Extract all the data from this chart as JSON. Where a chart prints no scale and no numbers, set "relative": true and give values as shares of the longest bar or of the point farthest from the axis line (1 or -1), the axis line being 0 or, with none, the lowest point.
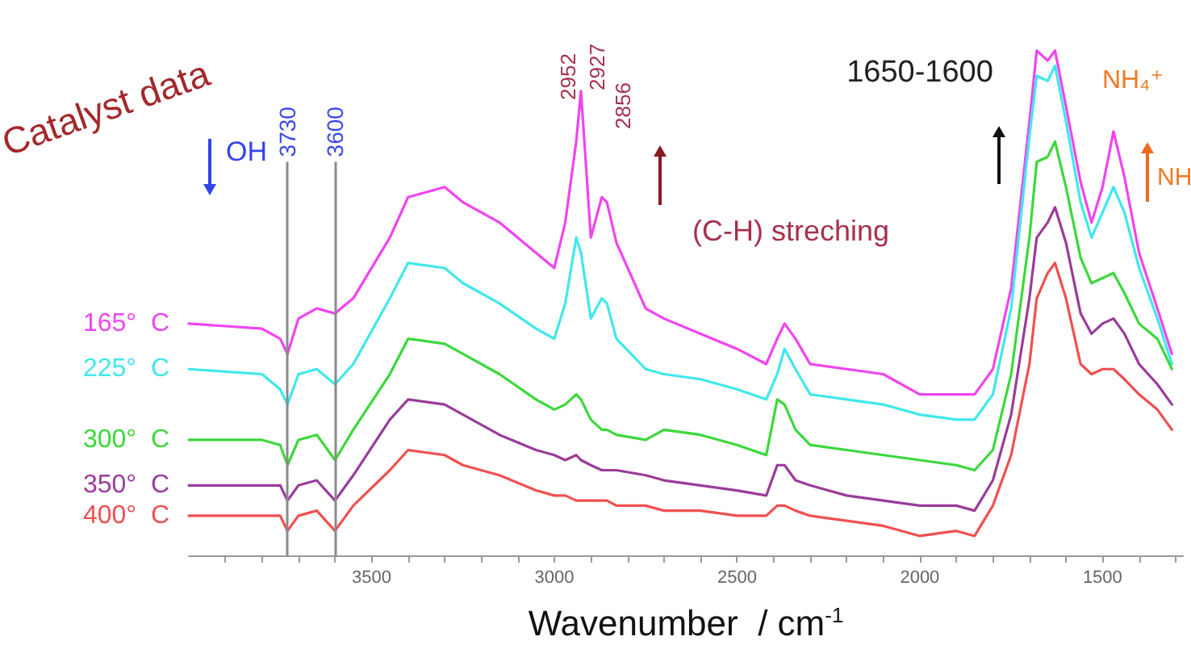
{
  "chart_data": {
    "type": "line",
    "title": "Catalyst data",
    "xlabel": "Wavenumber  / cm$^{-1}$",
    "relative": true,
    "marker": "none",
    "line_style": "solid",
    "xlim": [
      4000,
      1280
    ],
    "xticks": [
      {
        "value": 3900,
        "label": null
      },
      {
        "value": 3800,
        "label": null
      },
      {
        "value": 3700,
        "label": null
      },
      {
        "value": 3600,
        "label": null
      },
      3500,
      {
        "value": 3400,
        "label": null
      },
      {
        "value": 3300,
        "label": null
      },
      {
        "value": 3200,
        "label": null
      },
      {
        "value": 3100,
        "label": null
      },
      3000,
      {
        "value": 2900,
        "label": null
      },
      {
        "value": 2800,
        "label": null
      },
      {
        "value": 2700,
        "label": null
      },
      {
        "value": 2600,
        "label": null
      },
      2500,
      {
        "value": 2400,
        "label": null
      },
      {
        "value": 2300,
        "label": null
      },
      {
        "value": 2200,
        "label": null
      },
      {
        "value": 2100,
        "label": null
      },
      2000,
      {
        "value": 1900,
        "label": null
      },
      {
        "value": 1800,
        "label": null
      },
      {
        "value": 1700,
        "label": null
      },
      {
        "value": 1600,
        "label": null
      },
      1500,
      {
        "value": 1400,
        "label": null
      },
      {
        "value": 1300,
        "label": null
      }
    ],
    "x": [
      4000,
      3800,
      3750,
      3730,
      3700,
      3650,
      3600,
      3550,
      3450,
      3400,
      3300,
      3250,
      3150,
      3050,
      3000,
      2970,
      2940,
      2927,
      2900,
      2870,
      2856,
      2830,
      2750,
      2700,
      2600,
      2500,
      2420,
      2390,
      2370,
      2340,
      2300,
      2200,
      2100,
      2000,
      1900,
      1850,
      1800,
      1750,
      1700,
      1680,
      1650,
      1630,
      1600,
      1560,
      1530,
      1500,
      1470,
      1440,
      1400,
      1350,
      1310
    ],
    "series": [
      {
        "name": "165°  C",
        "color": "#f044f0",
        "values": [
          0.46,
          0.45,
          0.43,
          0.4,
          0.47,
          0.49,
          0.48,
          0.51,
          0.63,
          0.71,
          0.73,
          0.7,
          0.66,
          0.6,
          0.57,
          0.66,
          0.82,
          0.92,
          0.63,
          0.71,
          0.7,
          0.62,
          0.49,
          0.47,
          0.44,
          0.41,
          0.38,
          0.43,
          0.46,
          0.43,
          0.38,
          0.37,
          0.36,
          0.32,
          0.32,
          0.32,
          0.37,
          0.53,
          0.86,
          1.0,
          0.98,
          1.0,
          0.89,
          0.74,
          0.66,
          0.73,
          0.84,
          0.75,
          0.6,
          0.49,
          0.4
        ]
      },
      {
        "name": "225°  C",
        "color": "#40e8ec",
        "values": [
          0.37,
          0.36,
          0.33,
          0.3,
          0.36,
          0.37,
          0.34,
          0.38,
          0.51,
          0.58,
          0.57,
          0.54,
          0.5,
          0.45,
          0.43,
          0.5,
          0.63,
          0.6,
          0.47,
          0.51,
          0.5,
          0.43,
          0.37,
          0.36,
          0.35,
          0.33,
          0.31,
          0.36,
          0.41,
          0.37,
          0.32,
          0.31,
          0.3,
          0.28,
          0.27,
          0.27,
          0.32,
          0.49,
          0.83,
          0.95,
          0.94,
          0.97,
          0.86,
          0.7,
          0.63,
          0.68,
          0.73,
          0.68,
          0.57,
          0.47,
          0.38
        ]
      },
      {
        "name": "300°  C",
        "color": "#3cd83c",
        "values": [
          0.23,
          0.23,
          0.22,
          0.18,
          0.23,
          0.24,
          0.19,
          0.25,
          0.36,
          0.43,
          0.42,
          0.4,
          0.36,
          0.31,
          0.29,
          0.3,
          0.32,
          0.31,
          0.27,
          0.25,
          0.25,
          0.24,
          0.23,
          0.25,
          0.24,
          0.22,
          0.2,
          0.31,
          0.3,
          0.25,
          0.22,
          0.21,
          0.2,
          0.19,
          0.18,
          0.17,
          0.21,
          0.36,
          0.63,
          0.78,
          0.79,
          0.82,
          0.73,
          0.59,
          0.54,
          0.55,
          0.56,
          0.52,
          0.46,
          0.43,
          0.37
        ]
      },
      {
        "name": "350°  C",
        "color": "#9a3c9a",
        "values": [
          0.14,
          0.14,
          0.14,
          0.11,
          0.14,
          0.15,
          0.11,
          0.16,
          0.27,
          0.31,
          0.3,
          0.28,
          0.24,
          0.21,
          0.2,
          0.19,
          0.2,
          0.19,
          0.18,
          0.17,
          0.17,
          0.17,
          0.16,
          0.15,
          0.14,
          0.13,
          0.12,
          0.18,
          0.18,
          0.15,
          0.14,
          0.12,
          0.11,
          0.1,
          0.1,
          0.09,
          0.15,
          0.28,
          0.51,
          0.63,
          0.66,
          0.69,
          0.62,
          0.48,
          0.44,
          0.46,
          0.47,
          0.44,
          0.38,
          0.34,
          0.3
        ]
      },
      {
        "name": "400°  C",
        "color": "#f05050",
        "values": [
          0.08,
          0.08,
          0.08,
          0.05,
          0.08,
          0.09,
          0.05,
          0.1,
          0.17,
          0.21,
          0.2,
          0.18,
          0.16,
          0.13,
          0.12,
          0.12,
          0.11,
          0.11,
          0.11,
          0.11,
          0.11,
          0.1,
          0.1,
          0.09,
          0.09,
          0.08,
          0.08,
          0.1,
          0.1,
          0.09,
          0.08,
          0.07,
          0.06,
          0.04,
          0.05,
          0.04,
          0.1,
          0.2,
          0.38,
          0.51,
          0.56,
          0.58,
          0.51,
          0.38,
          0.36,
          0.37,
          0.37,
          0.35,
          0.32,
          0.29,
          0.25
        ]
      }
    ],
    "ref_lines": [
      {
        "axis": "x",
        "value": 3730,
        "label": "3730",
        "color": "#8a8a8a"
      },
      {
        "axis": "x",
        "value": 3600,
        "label": "3600",
        "color": "#8a8a8a"
      }
    ],
    "annotations": [
      "OH",
      "(C-H) streching",
      "1650-1600",
      "NH₄⁺",
      "NH",
      "2952",
      "2927",
      "2856"
    ]
  }
}
